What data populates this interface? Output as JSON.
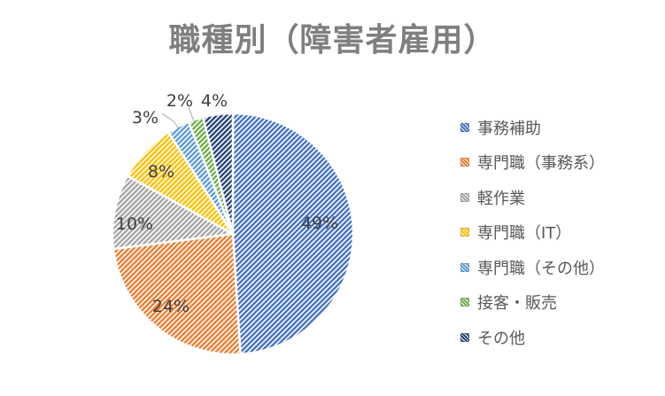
{
  "chart_data": {
    "type": "pie",
    "title": "職種別（障害者雇用）",
    "categories": [
      "事務補助",
      "専門職（事務系）",
      "軽作業",
      "専門職（IT）",
      "専門職（その他）",
      "接客・販売",
      "その他"
    ],
    "values": [
      49,
      24,
      10,
      8,
      3,
      2,
      4
    ],
    "value_labels": [
      "49%",
      "24%",
      "10%",
      "8%",
      "3%",
      "2%",
      "4%"
    ],
    "colors": [
      "#4472c4",
      "#ed7d31",
      "#a5a5a5",
      "#ffc000",
      "#5b9bd5",
      "#70ad47",
      "#264478"
    ],
    "legend_position": "right",
    "start_angle": "12 o'clock",
    "direction": "clockwise"
  }
}
